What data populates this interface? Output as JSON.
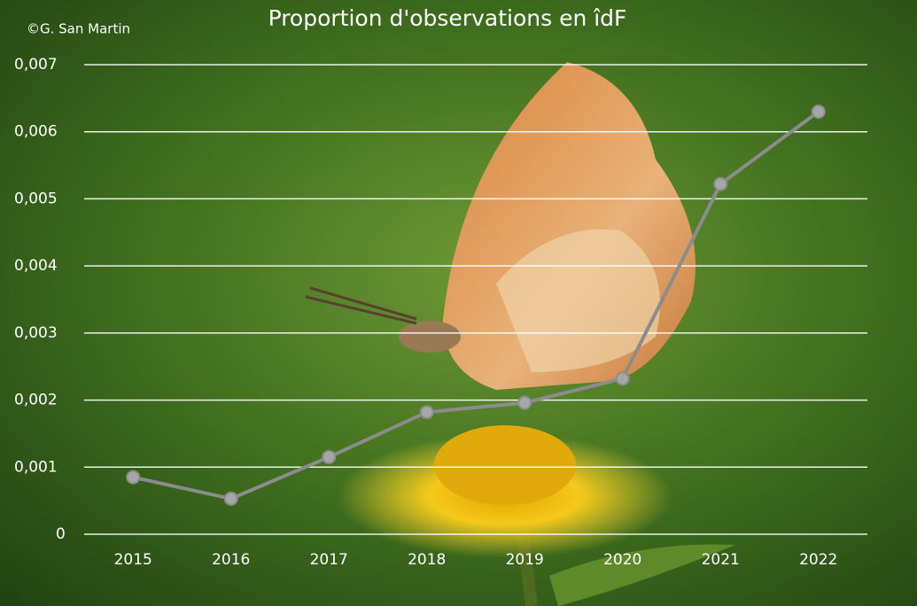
{
  "chart_data": {
    "type": "line",
    "title": "Proportion d'observations en îdF",
    "credit": "©G. San Martin",
    "categories": [
      "2015",
      "2016",
      "2017",
      "2018",
      "2019",
      "2020",
      "2021",
      "2022"
    ],
    "series": [
      {
        "name": "Proportion",
        "color": "#8c8c8c",
        "values": [
          0.00085,
          0.00053,
          0.00115,
          0.00182,
          0.00196,
          0.00232,
          0.00522,
          0.0063
        ]
      }
    ],
    "ylim": [
      0,
      0.007
    ],
    "yticks": [
      0,
      {
        "value": 0.001,
        "label": "0,001"
      },
      {
        "value": 0.002,
        "label": "0,002"
      },
      {
        "value": 0.003,
        "label": "0,003"
      },
      {
        "value": 0.004,
        "label": "0,004"
      },
      {
        "value": 0.005,
        "label": "0,005"
      },
      {
        "value": 0.006,
        "label": "0,006"
      },
      {
        "value": 0.007,
        "label": "0,007"
      }
    ],
    "grid": true
  }
}
